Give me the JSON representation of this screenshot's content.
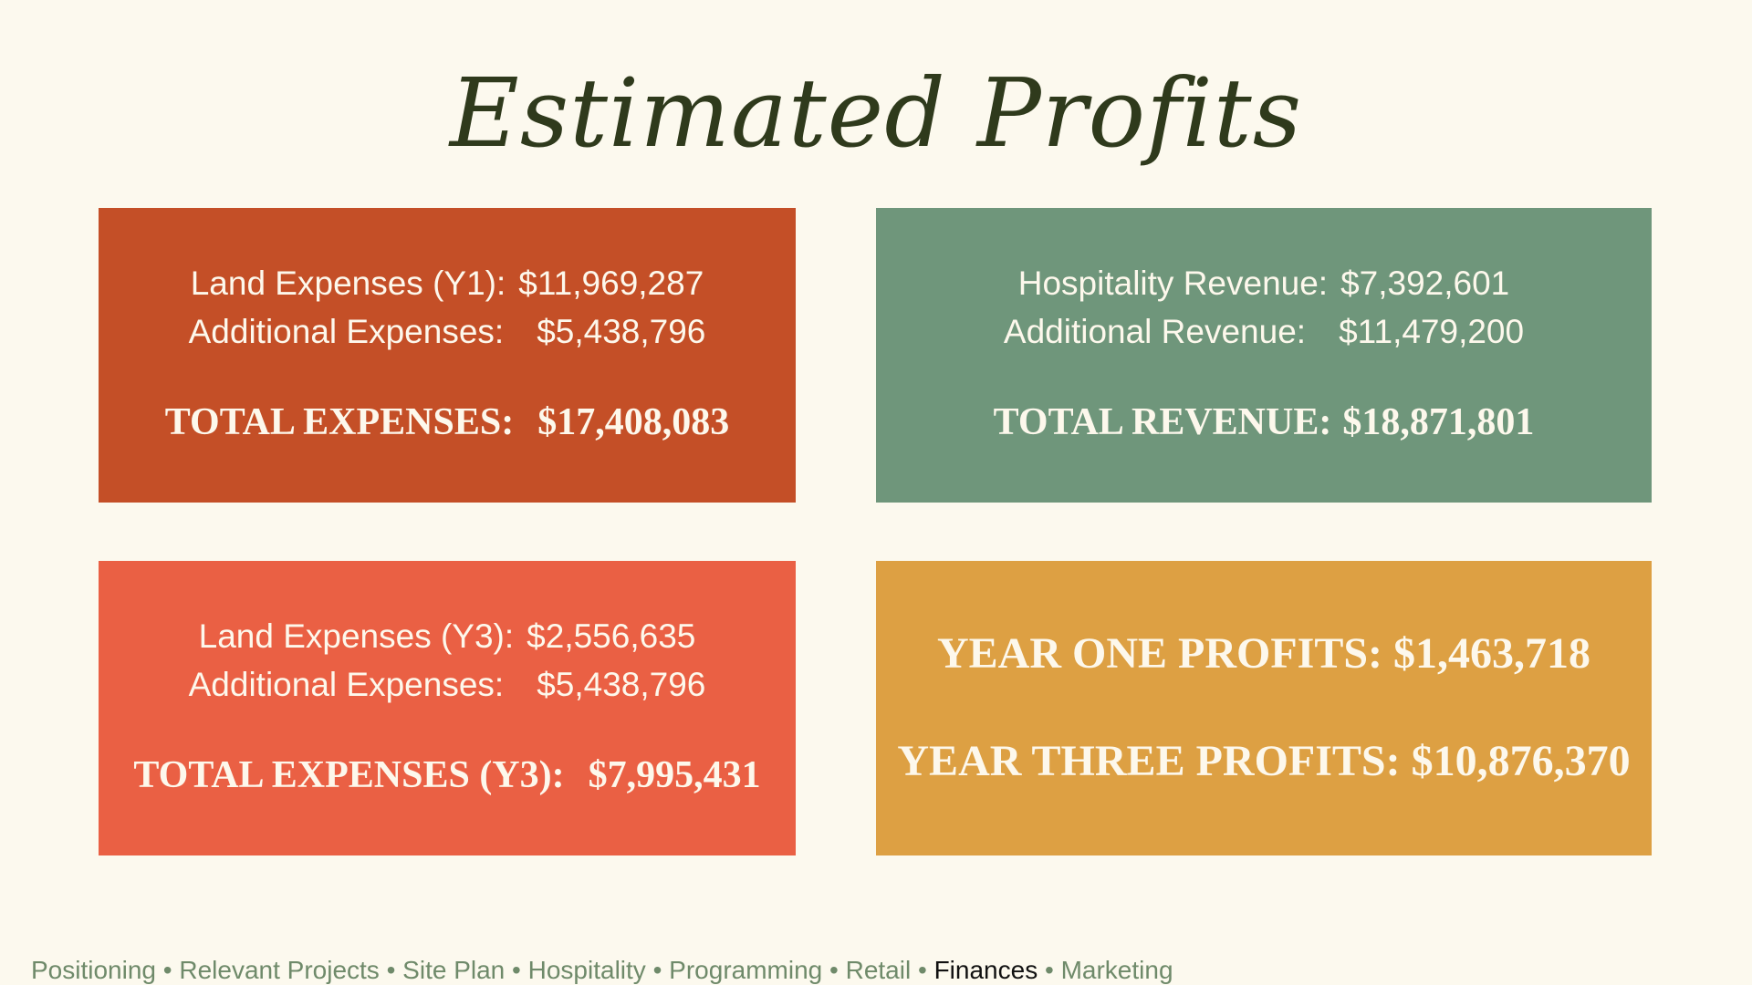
{
  "title": "Estimated Profits",
  "land_y1": {
    "line1_label": "Land Expenses (Y1):",
    "line1_value": "$11,969,287",
    "line2_label": "Additional Expenses:",
    "line2_value": "$5,438,796",
    "total_label": "TOTAL EXPENSES:",
    "total_value": "$17,408,083",
    "color": "#c44f27"
  },
  "revenue": {
    "line1_label": "Hospitality Revenue:",
    "line1_value": "$7,392,601",
    "line2_label": "Additional Revenue:",
    "line2_value": "$11,479,200",
    "total_label": "TOTAL REVENUE:",
    "total_value": "$18,871,801",
    "color": "#6f967b"
  },
  "land_y3": {
    "line1_label": "Land Expenses (Y3):",
    "line1_value": "$2,556,635",
    "line2_label": "Additional Expenses:",
    "line2_value": "$5,438,796",
    "total_label": "TOTAL EXPENSES (Y3):",
    "total_value": "$7,995,431",
    "color": "#ea6044"
  },
  "profits": {
    "year_one_label": "YEAR ONE PROFITS:",
    "year_one_value": "$1,463,718",
    "year_three_label": "YEAR THREE PROFITS:",
    "year_three_value": "$10,876,370",
    "color": "#dda043"
  },
  "footer": {
    "separator": "•",
    "items": [
      "Positioning",
      "Relevant Projects",
      "Site Plan",
      "Hospitality",
      "Programming",
      "Retail",
      "Finances",
      "Marketing"
    ],
    "active": "Finances"
  }
}
